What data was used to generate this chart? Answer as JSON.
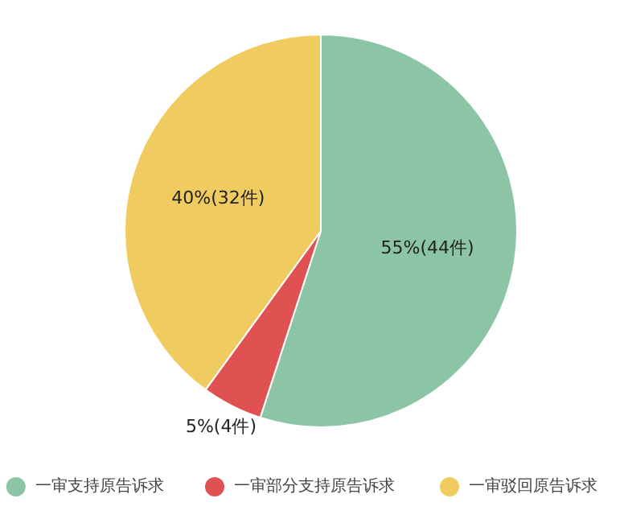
{
  "chart_data": {
    "type": "pie",
    "categories": [
      "一审支持原告诉求",
      "一审部分支持原告诉求",
      "一审驳回原告诉求"
    ],
    "values": [
      44,
      4,
      32
    ],
    "colors": [
      "#8cc5a6",
      "#e05252",
      "#f0cc60"
    ],
    "value_labels": [
      "55%(44件)",
      "5%(4件)",
      "40%(32件)"
    ],
    "legend": "bottom"
  }
}
